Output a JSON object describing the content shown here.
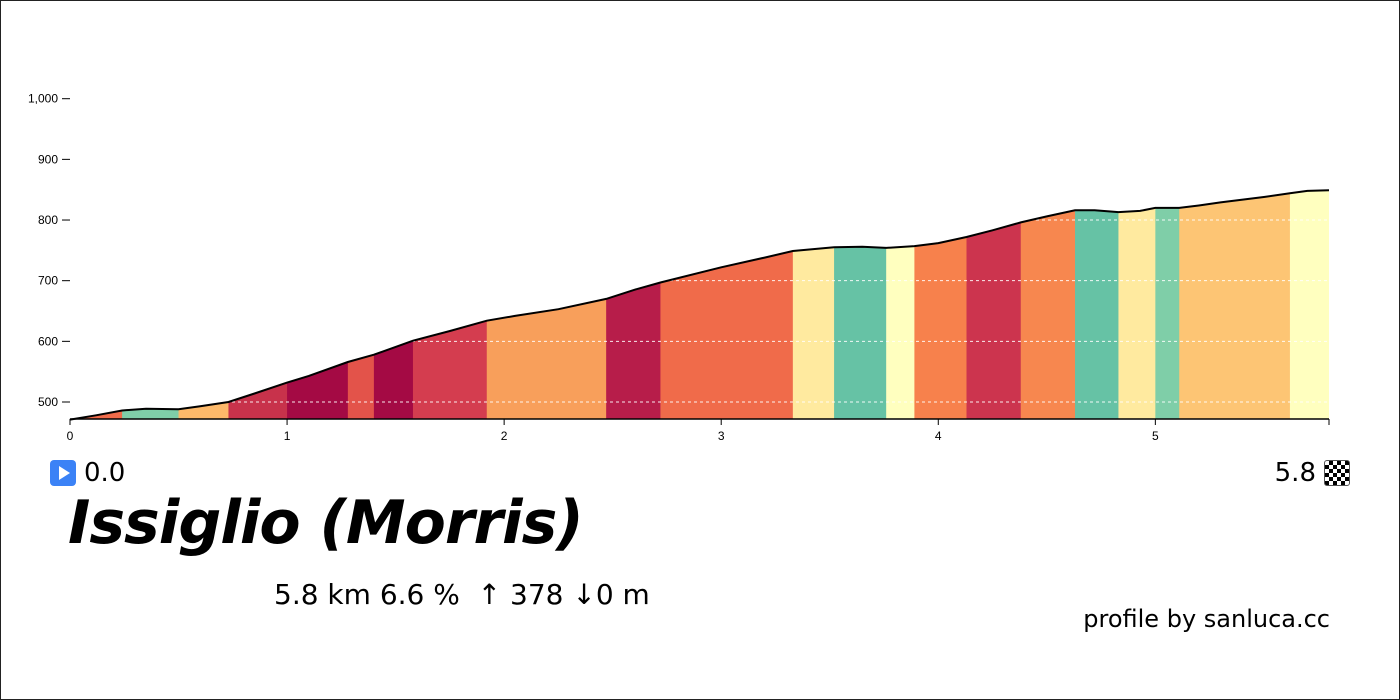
{
  "chart_data": {
    "type": "area",
    "title": "Issiglio (Morris)",
    "xlabel": "",
    "ylabel": "",
    "xlim": [
      0,
      5.8
    ],
    "ylim": [
      470,
      1000
    ],
    "x_ticks": [
      0,
      1,
      2,
      3,
      4,
      5
    ],
    "x_tick_labels": [
      "0",
      "1",
      "2",
      "3",
      "4",
      "5"
    ],
    "y_ticks": [
      500,
      600,
      700,
      800,
      900,
      1000
    ],
    "y_tick_labels": [
      "500",
      "600",
      "700",
      "800",
      "900",
      "1,000"
    ],
    "grid_values": [
      500,
      600,
      700,
      800
    ],
    "profile": [
      {
        "x": 0.0,
        "y": 471
      },
      {
        "x": 0.12,
        "y": 478
      },
      {
        "x": 0.24,
        "y": 486
      },
      {
        "x": 0.35,
        "y": 489
      },
      {
        "x": 0.5,
        "y": 488
      },
      {
        "x": 0.6,
        "y": 493
      },
      {
        "x": 0.73,
        "y": 500
      },
      {
        "x": 0.85,
        "y": 514
      },
      {
        "x": 1.0,
        "y": 532
      },
      {
        "x": 1.1,
        "y": 543
      },
      {
        "x": 1.28,
        "y": 566
      },
      {
        "x": 1.4,
        "y": 578
      },
      {
        "x": 1.58,
        "y": 601
      },
      {
        "x": 1.75,
        "y": 617
      },
      {
        "x": 1.92,
        "y": 634
      },
      {
        "x": 2.05,
        "y": 642
      },
      {
        "x": 2.25,
        "y": 653
      },
      {
        "x": 2.47,
        "y": 670
      },
      {
        "x": 2.6,
        "y": 685
      },
      {
        "x": 2.72,
        "y": 697
      },
      {
        "x": 3.0,
        "y": 722
      },
      {
        "x": 3.2,
        "y": 738
      },
      {
        "x": 3.33,
        "y": 749
      },
      {
        "x": 3.52,
        "y": 755
      },
      {
        "x": 3.65,
        "y": 756
      },
      {
        "x": 3.76,
        "y": 754
      },
      {
        "x": 3.89,
        "y": 757
      },
      {
        "x": 4.0,
        "y": 762
      },
      {
        "x": 4.13,
        "y": 772
      },
      {
        "x": 4.25,
        "y": 783
      },
      {
        "x": 4.38,
        "y": 796
      },
      {
        "x": 4.5,
        "y": 806
      },
      {
        "x": 4.63,
        "y": 816
      },
      {
        "x": 4.72,
        "y": 816
      },
      {
        "x": 4.83,
        "y": 813
      },
      {
        "x": 4.93,
        "y": 815
      },
      {
        "x": 5.0,
        "y": 820
      },
      {
        "x": 5.11,
        "y": 820
      },
      {
        "x": 5.2,
        "y": 824
      },
      {
        "x": 5.3,
        "y": 829
      },
      {
        "x": 5.5,
        "y": 838
      },
      {
        "x": 5.62,
        "y": 844
      },
      {
        "x": 5.7,
        "y": 848
      },
      {
        "x": 5.8,
        "y": 849
      }
    ],
    "segments": [
      {
        "x0": 0.0,
        "x1": 0.24,
        "color": "#f06b4a"
      },
      {
        "x0": 0.24,
        "x1": 0.5,
        "color": "#7fcea8"
      },
      {
        "x0": 0.5,
        "x1": 0.73,
        "color": "#fdb96a"
      },
      {
        "x0": 0.73,
        "x1": 1.0,
        "color": "#c8324b"
      },
      {
        "x0": 1.0,
        "x1": 1.28,
        "color": "#a40a44"
      },
      {
        "x0": 1.28,
        "x1": 1.4,
        "color": "#e3534a"
      },
      {
        "x0": 1.4,
        "x1": 1.58,
        "color": "#a40a44"
      },
      {
        "x0": 1.58,
        "x1": 1.92,
        "color": "#d43d4f"
      },
      {
        "x0": 1.92,
        "x1": 2.47,
        "color": "#f89f5b"
      },
      {
        "x0": 2.47,
        "x1": 2.72,
        "color": "#b71d4a"
      },
      {
        "x0": 2.72,
        "x1": 3.33,
        "color": "#f06b4a"
      },
      {
        "x0": 3.33,
        "x1": 3.52,
        "color": "#ffea9f"
      },
      {
        "x0": 3.52,
        "x1": 3.76,
        "color": "#66c2a5"
      },
      {
        "x0": 3.76,
        "x1": 3.89,
        "color": "#ffffbf"
      },
      {
        "x0": 3.89,
        "x1": 4.13,
        "color": "#f7814c"
      },
      {
        "x0": 4.13,
        "x1": 4.38,
        "color": "#cc344e"
      },
      {
        "x0": 4.38,
        "x1": 4.63,
        "color": "#f7874f"
      },
      {
        "x0": 4.63,
        "x1": 4.83,
        "color": "#66c2a5"
      },
      {
        "x0": 4.83,
        "x1": 5.0,
        "color": "#ffea9f"
      },
      {
        "x0": 5.0,
        "x1": 5.11,
        "color": "#7fcea8"
      },
      {
        "x0": 5.11,
        "x1": 5.62,
        "color": "#fdc574"
      },
      {
        "x0": 5.62,
        "x1": 5.8,
        "color": "#ffffbf"
      }
    ]
  },
  "start": {
    "km": "0.0",
    "icon": "play-icon"
  },
  "end": {
    "km": "5.8",
    "icon": "checkered-flag-icon"
  },
  "climb_name": "Issiglio (Morris)",
  "stats_text": "5.8 km 6.6 %  ↑ 378 ↓0 m",
  "credit": "profile by sanluca.cc"
}
